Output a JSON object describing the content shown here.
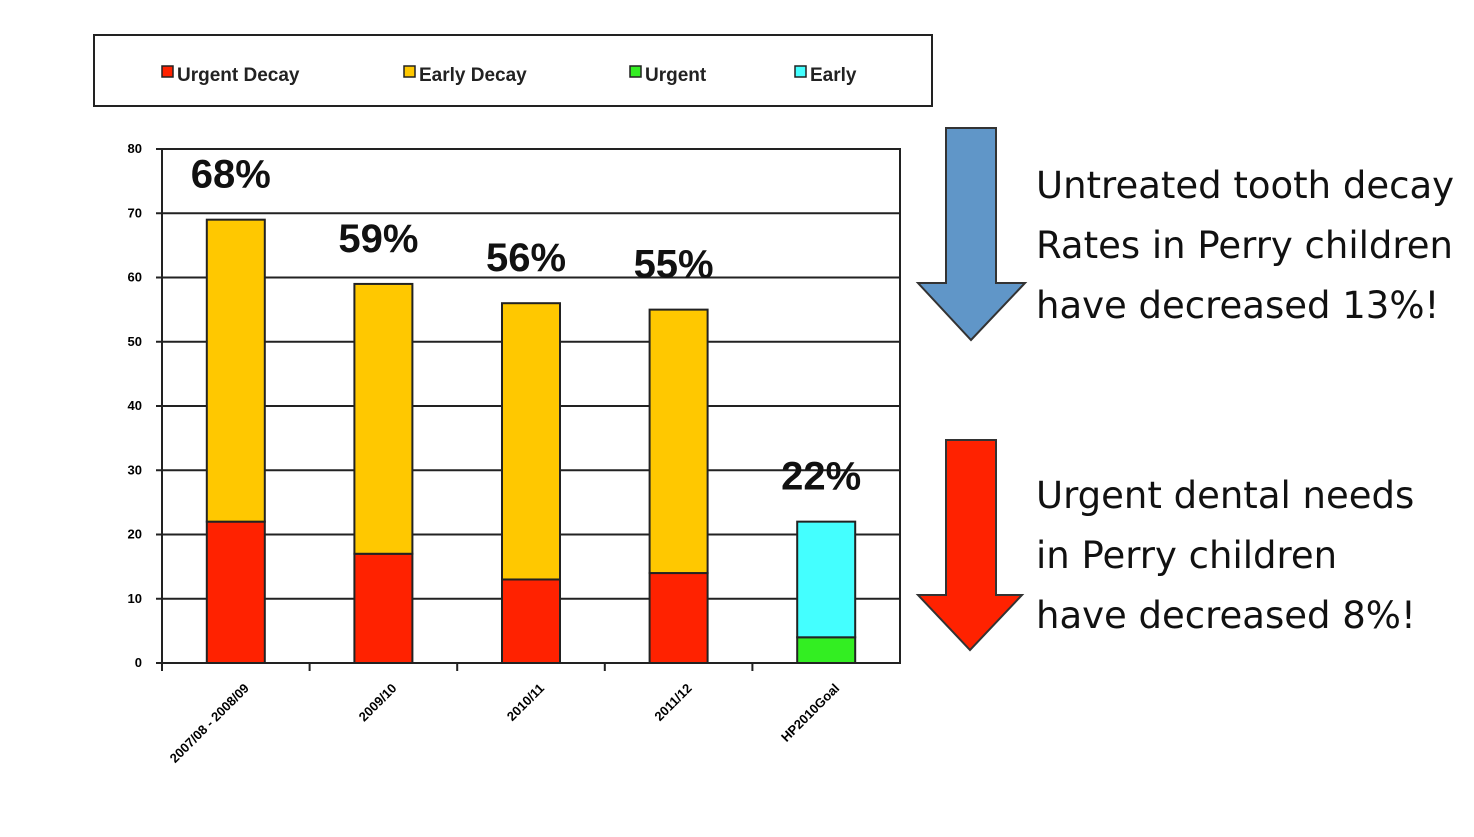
{
  "chart_data": {
    "type": "stacked_bar",
    "categories": [
      "2007/08 - 2008/09",
      "2009/10",
      "2010/11",
      "2011/12",
      "HP2010Goal"
    ],
    "series": [
      {
        "name": "Urgent Decay",
        "color": "#ff2200",
        "values": [
          22,
          17,
          13,
          14,
          null
        ]
      },
      {
        "name": "Early Decay",
        "color": "#ffc800",
        "values": [
          47,
          42,
          43,
          41,
          null
        ]
      },
      {
        "name": "Urgent",
        "color": "#33ee22",
        "values": [
          null,
          null,
          null,
          null,
          4
        ]
      },
      {
        "name": "Early",
        "color": "#44ffff",
        "values": [
          null,
          null,
          null,
          null,
          18
        ]
      }
    ],
    "bar_annotations": [
      "68%",
      "59%",
      "56%",
      "55%",
      "22%"
    ],
    "ylim": [
      0,
      80
    ],
    "yticks": [
      0,
      10,
      20,
      30,
      40,
      50,
      60,
      70,
      80
    ],
    "grid": true,
    "legend": "top",
    "side_notes": [
      {
        "color": "#6096c8",
        "lines": [
          "Untreated tooth decay",
          "Rates in Perry children",
          "have decreased 13%!"
        ]
      },
      {
        "color": "#ff2200",
        "lines": [
          "Urgent dental needs",
          "in Perry children",
          "have decreased 8%!"
        ]
      }
    ]
  }
}
